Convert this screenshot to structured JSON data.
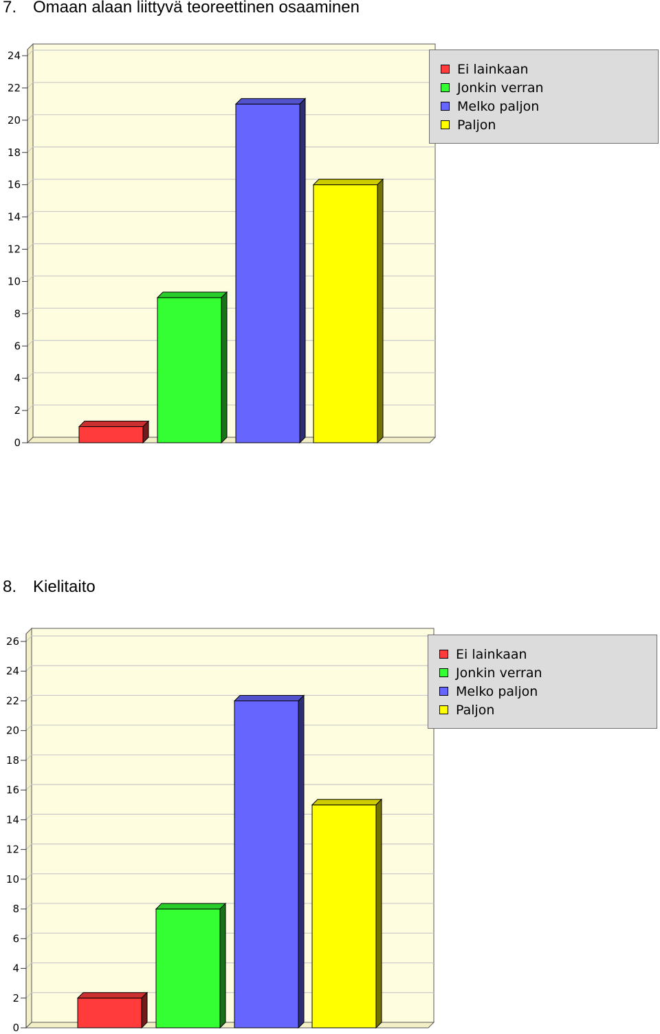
{
  "charts": [
    {
      "number": "7.",
      "heading": "Omaan alaan liittyvä teoreettinen osaaminen",
      "legend": [
        "Ei lainkaan",
        "Jonkin verran",
        "Melko paljon",
        "Paljon"
      ]
    },
    {
      "number": "8.",
      "heading": "Kielitaito",
      "legend": [
        "Ei lainkaan",
        "Jonkin verran",
        "Melko paljon",
        "Paljon"
      ]
    }
  ],
  "colors": {
    "bar": [
      "#ff3b3b",
      "#33ff33",
      "#6666ff",
      "#ffff00"
    ],
    "plot_background": "#fffde0",
    "legend_background": "#dcdcdc"
  },
  "chart_data": [
    {
      "type": "bar",
      "title": "Omaan alaan liittyvä teoreettinen osaaminen",
      "categories": [
        "Ei lainkaan",
        "Jonkin verran",
        "Melko paljon",
        "Paljon"
      ],
      "values": [
        1,
        9,
        21,
        16
      ],
      "ylim": [
        0,
        24
      ],
      "yticks": [
        0,
        2,
        4,
        6,
        8,
        10,
        12,
        14,
        16,
        18,
        20,
        22,
        24
      ],
      "grid": true,
      "legend_position": "right"
    },
    {
      "type": "bar",
      "title": "Kielitaito",
      "categories": [
        "Ei lainkaan",
        "Jonkin verran",
        "Melko paljon",
        "Paljon"
      ],
      "values": [
        2,
        8,
        22,
        15
      ],
      "ylim": [
        0,
        26
      ],
      "yticks": [
        0,
        2,
        4,
        6,
        8,
        10,
        12,
        14,
        16,
        18,
        20,
        22,
        24,
        26
      ],
      "grid": true,
      "legend_position": "right"
    }
  ]
}
